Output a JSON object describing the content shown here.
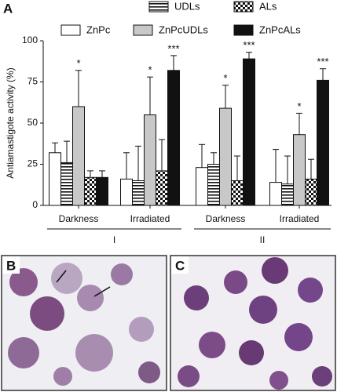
{
  "chart_data": {
    "type": "bar",
    "panel_labels": [
      "A",
      "B",
      "C"
    ],
    "ylabel": "Antiamastigote activity (%)",
    "categories": [
      "Darkness",
      "Irradiated",
      "Darkness",
      "Irradiated"
    ],
    "groups": [
      "I",
      "II"
    ],
    "ylim": [
      0,
      100
    ],
    "yticks": [
      0,
      25,
      50,
      75,
      100
    ],
    "series": [
      {
        "name": "ZnPc",
        "color": "#ffffff",
        "pattern": "solid",
        "values": [
          32,
          16,
          23,
          14
        ],
        "errors": [
          6,
          16,
          14,
          20
        ],
        "significance": [
          null,
          null,
          null,
          null
        ]
      },
      {
        "name": "UDLs",
        "color": "#ffffff",
        "pattern": "hlines",
        "values": [
          26,
          15,
          25,
          13
        ],
        "errors": [
          13,
          21,
          7,
          17
        ],
        "significance": [
          null,
          null,
          null,
          null
        ]
      },
      {
        "name": "ZnPcUDLs",
        "color": "#c8c8c8",
        "pattern": "solid",
        "values": [
          60,
          55,
          59,
          43
        ],
        "errors": [
          22,
          23,
          14,
          13
        ],
        "significance": [
          "*",
          "*",
          "*",
          "*"
        ]
      },
      {
        "name": "ALs",
        "color": "#ffffff",
        "pattern": "checker",
        "values": [
          17,
          21,
          15,
          16
        ],
        "errors": [
          4,
          19,
          15,
          12
        ],
        "significance": [
          null,
          null,
          null,
          null
        ]
      },
      {
        "name": "ZnPcALs",
        "color": "#111111",
        "pattern": "solid",
        "values": [
          17,
          82,
          89,
          76
        ],
        "errors": [
          4,
          9,
          4,
          7
        ],
        "significance": [
          null,
          "***",
          "***",
          "***"
        ]
      }
    ]
  }
}
